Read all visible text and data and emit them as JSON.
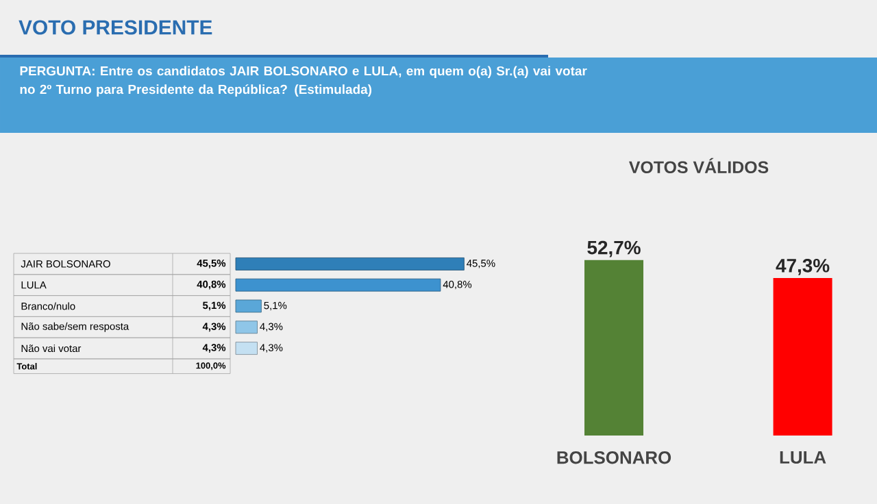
{
  "chart_data": [
    {
      "type": "bar",
      "orientation": "horizontal",
      "title": "VOTO PRESIDENTE",
      "subtitle": "PERGUNTA: Entre os candidatos JAIR BOLSONARO e LULA, em quem o(a) Sr.(a) vai votar no 2º Turno para Presidente da República? (Estimulada)",
      "categories": [
        "JAIR BOLSONARO",
        "LULA",
        "Branco/nulo",
        "Não sabe/sem resposta",
        "Não vai votar"
      ],
      "values": [
        45.5,
        40.8,
        5.1,
        4.3,
        4.3
      ],
      "colors": [
        "#2f7fb8",
        "#3d92cf",
        "#5aa7d8",
        "#8fc6e8",
        "#c4e0f2"
      ],
      "value_labels": [
        "45,5%",
        "40,8%",
        "5,1%",
        "4,3%",
        "4,3%"
      ],
      "annotations": [
        "Total",
        "100,0%"
      ]
    },
    {
      "type": "bar",
      "title": "VOTOS VÁLIDOS",
      "categories": [
        "BOLSONARO",
        "LULA"
      ],
      "values": [
        52.7,
        47.3
      ],
      "colors": [
        "#548235",
        "#ff0000"
      ],
      "value_labels": [
        "52,7%",
        "47,3%"
      ]
    }
  ]
}
